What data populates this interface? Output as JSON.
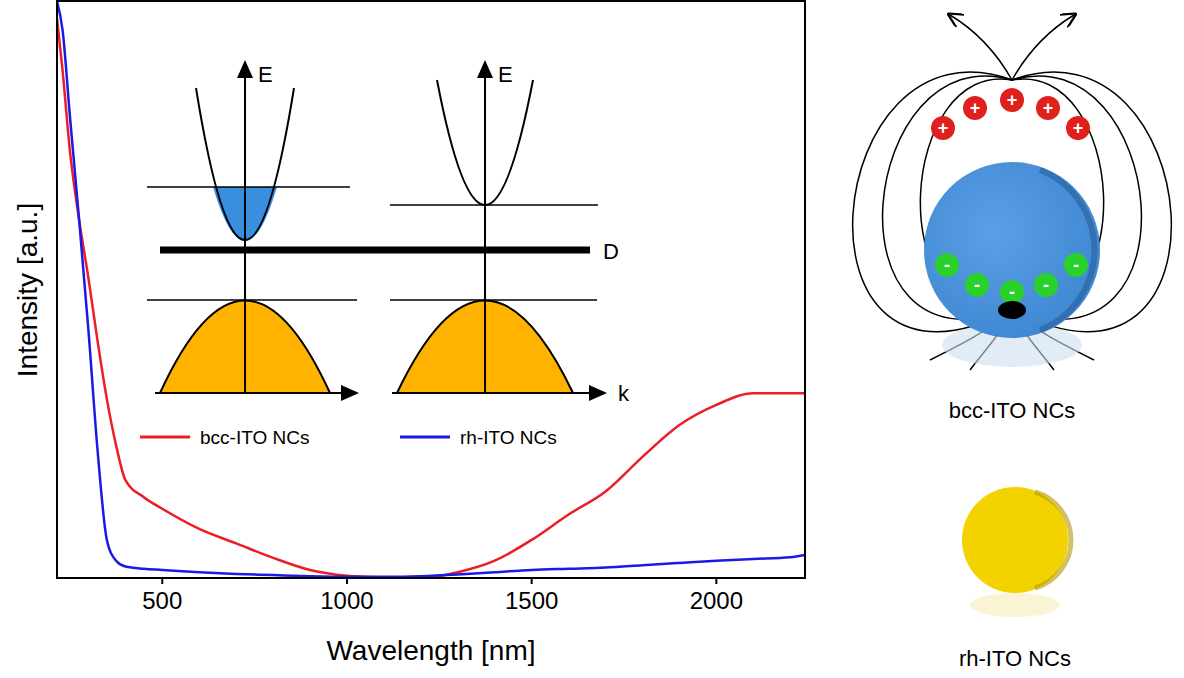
{
  "chart_data": {
    "type": "line",
    "x_label": "Wavelength [nm]",
    "y_label": "Intensity [a.u.]",
    "x": [
      215,
      230,
      250,
      275,
      300,
      325,
      350,
      375,
      400,
      450,
      500,
      600,
      700,
      800,
      900,
      1000,
      1100,
      1200,
      1300,
      1400,
      1500,
      1600,
      1700,
      1800,
      1900,
      2000,
      2100,
      2200,
      2240
    ],
    "series": [
      {
        "name": "bcc-ITO NCs",
        "color": "#ee1c24",
        "values": [
          0.97,
          0.88,
          0.74,
          0.62,
          0.52,
          0.41,
          0.31,
          0.23,
          0.17,
          0.14,
          0.12,
          0.085,
          0.06,
          0.035,
          0.014,
          0.004,
          0.001,
          0,
          0.01,
          0.03,
          0.066,
          0.11,
          0.15,
          0.21,
          0.265,
          0.3,
          0.32,
          0.32,
          0.32
        ]
      },
      {
        "name": "rh-ITO NCs",
        "color": "#1a1ae6",
        "values": [
          1.0,
          0.95,
          0.8,
          0.62,
          0.43,
          0.22,
          0.066,
          0.03,
          0.02,
          0.016,
          0.014,
          0.01,
          0.007,
          0.005,
          0.003,
          0.002,
          0.002,
          0.003,
          0.006,
          0.01,
          0.014,
          0.016,
          0.018,
          0.022,
          0.026,
          0.03,
          0.033,
          0.036,
          0.04
        ]
      }
    ],
    "xlim": [
      215,
      2240
    ],
    "xticks": [
      500,
      1000,
      1500,
      2000
    ],
    "ylim": [
      0,
      1
    ],
    "tick_labels": "x",
    "grid": false
  },
  "inset_diagram": {
    "energy_labels": [
      "E",
      "E"
    ],
    "momentum_label": "k",
    "defect_level_label": "D"
  },
  "particles": {
    "labels": [
      "bcc-ITO NCs",
      "rh-ITO NCs"
    ],
    "charges": [
      "+",
      "-"
    ]
  }
}
